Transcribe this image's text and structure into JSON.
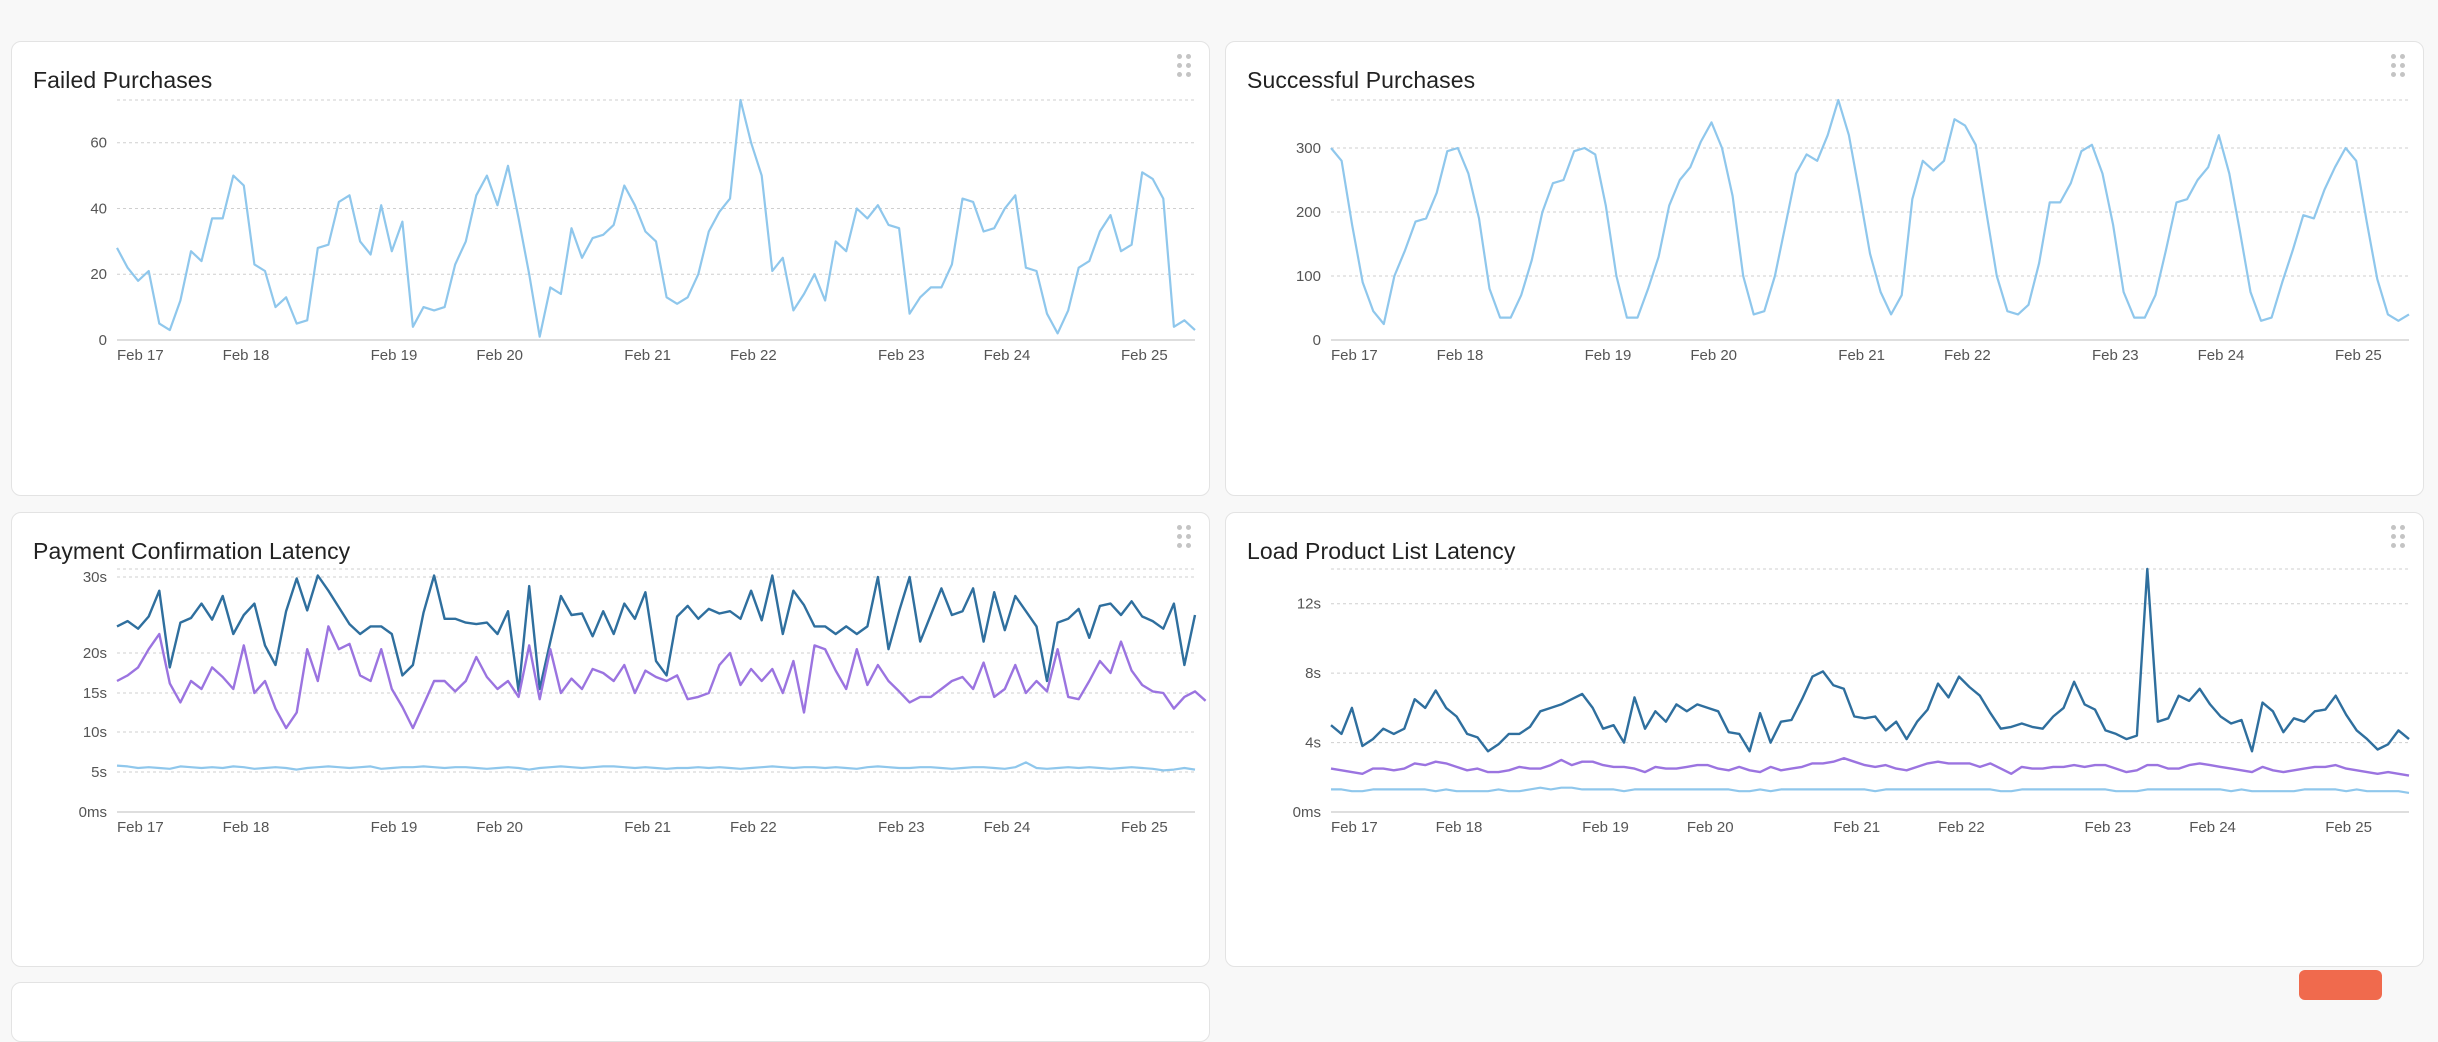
{
  "colors": {
    "series_light": "#8fc7ec",
    "series_dark": "#2f6f9e",
    "series_purple": "#9b74e0",
    "grid": "#cfcfcf",
    "fab": "#f06a4d"
  },
  "panels": {
    "failed": {
      "title": "Failed Purchases"
    },
    "successful": {
      "title": "Successful Purchases"
    },
    "payment": {
      "title": "Payment Confirmation Latency"
    },
    "load": {
      "title": "Load Product List Latency"
    }
  },
  "chart_data": [
    {
      "id": "failed",
      "type": "line",
      "title": "Failed Purchases",
      "x_tick_labels": [
        "Feb 17",
        "Feb 18",
        "Feb 19",
        "Feb 20",
        "Feb 21",
        "Feb 22",
        "Feb 23",
        "Feb 24",
        "Feb 25"
      ],
      "x_tick_index": [
        0,
        10,
        24,
        34,
        48,
        58,
        72,
        82,
        95
      ],
      "y_ticks": [
        0,
        20,
        40,
        60
      ],
      "y_tick_labels": [
        "0",
        "20",
        "40",
        "60"
      ],
      "ylim": [
        0,
        73
      ],
      "grid": true,
      "series": [
        {
          "color": "light",
          "values": [
            28,
            22,
            18,
            21,
            5,
            3,
            12,
            27,
            24,
            37,
            37,
            50,
            47,
            23,
            21,
            10,
            13,
            5,
            6,
            28,
            29,
            42,
            44,
            30,
            26,
            41,
            27,
            36,
            4,
            10,
            9,
            10,
            23,
            30,
            44,
            50,
            41,
            53,
            37,
            20,
            1,
            16,
            14,
            34,
            25,
            31,
            32,
            35,
            47,
            41,
            33,
            30,
            13,
            11,
            13,
            20,
            33,
            39,
            43,
            73,
            60,
            50,
            21,
            25,
            9,
            14,
            20,
            12,
            30,
            27,
            40,
            37,
            41,
            35,
            34,
            8,
            13,
            16,
            16,
            23,
            43,
            42,
            33,
            34,
            40,
            44,
            22,
            21,
            8,
            2,
            9,
            22,
            24,
            33,
            38,
            27,
            29,
            51,
            49,
            43,
            4,
            6,
            3
          ]
        }
      ]
    },
    {
      "id": "successful",
      "type": "line",
      "title": "Successful Purchases",
      "x_tick_labels": [
        "Feb 17",
        "Feb 18",
        "Feb 19",
        "Feb 20",
        "Feb 21",
        "Feb 22",
        "Feb 23",
        "Feb 24",
        "Feb 25"
      ],
      "x_tick_index": [
        0,
        10,
        24,
        34,
        48,
        58,
        72,
        82,
        95
      ],
      "y_ticks": [
        0,
        100,
        200,
        300
      ],
      "y_tick_labels": [
        "0",
        "100",
        "200",
        "300"
      ],
      "ylim": [
        0,
        375
      ],
      "grid": true,
      "series": [
        {
          "color": "light",
          "values": [
            300,
            280,
            180,
            90,
            45,
            25,
            100,
            140,
            185,
            190,
            230,
            295,
            300,
            260,
            190,
            80,
            35,
            35,
            70,
            125,
            200,
            245,
            250,
            295,
            300,
            290,
            210,
            100,
            35,
            35,
            80,
            130,
            210,
            250,
            270,
            310,
            340,
            300,
            225,
            100,
            40,
            45,
            100,
            180,
            260,
            290,
            280,
            320,
            375,
            320,
            230,
            135,
            75,
            40,
            70,
            220,
            280,
            265,
            280,
            345,
            335,
            305,
            200,
            100,
            45,
            40,
            55,
            120,
            215,
            215,
            245,
            295,
            305,
            260,
            180,
            75,
            35,
            35,
            70,
            140,
            215,
            220,
            250,
            270,
            320,
            260,
            170,
            75,
            30,
            35,
            90,
            140,
            195,
            190,
            235,
            270,
            300,
            280,
            185,
            95,
            40,
            30,
            40
          ]
        }
      ]
    },
    {
      "id": "payment",
      "type": "line",
      "title": "Payment Confirmation Latency",
      "x_tick_labels": [
        "Feb 17",
        "Feb 18",
        "Feb 19",
        "Feb 20",
        "Feb 21",
        "Feb 22",
        "Feb 23",
        "Feb 24",
        "Feb 25"
      ],
      "x_tick_index": [
        0,
        10,
        24,
        34,
        48,
        58,
        72,
        82,
        95
      ],
      "y_ticks": [
        0,
        5,
        10,
        15,
        20,
        30
      ],
      "y_tick_labels": [
        "0ms",
        "5s",
        "10s",
        "15s",
        "20s",
        "30s"
      ],
      "y_scale_note": "non-linear axis",
      "ylim": [
        0,
        30
      ],
      "grid": true,
      "series": [
        {
          "color": "dark",
          "values": [
            23.5,
            24.2,
            23.2,
            24.8,
            28.2,
            18.2,
            24,
            24.6,
            26.5,
            24.4,
            27.5,
            22.5,
            25,
            26.5,
            21,
            18.5,
            25.5,
            29.8,
            25.6,
            30.2,
            28.2,
            26,
            23.8,
            22.5,
            23.5,
            23.5,
            22.5,
            17.2,
            18.5,
            25.3,
            30.2,
            24.5,
            24.5,
            24,
            23.8,
            24,
            22.5,
            25.5,
            15.2,
            28.8,
            15.5,
            21.5,
            27.5,
            25,
            25.2,
            22.2,
            25.5,
            22.5,
            26.5,
            24.5,
            28,
            19,
            17.2,
            24.8,
            26.2,
            24.5,
            25.8,
            25.2,
            25.5,
            24.5,
            28.2,
            24.3,
            30.2,
            22.5,
            28.2,
            26.3,
            23.5,
            23.5,
            22.5,
            23.5,
            22.5,
            23.5,
            30,
            20.5,
            25.5,
            30,
            21.5,
            25,
            28.5,
            25,
            25.5,
            28.5,
            21.5,
            28,
            23,
            27.5,
            25.5,
            23.5,
            16.5,
            24,
            24.5,
            25.8,
            22,
            26.2,
            26.5,
            25,
            26.8,
            24.8,
            24.2,
            23.2,
            26.5,
            18.5,
            25
          ]
        },
        {
          "color": "purple",
          "values": [
            16.5,
            17.2,
            18.2,
            20.5,
            22.5,
            16.2,
            13.8,
            16.5,
            15.5,
            18.2,
            17,
            15.5,
            21,
            15,
            16.5,
            13,
            10.5,
            12.5,
            20.5,
            16.5,
            23.5,
            20.5,
            21.2,
            17.2,
            16.5,
            20.5,
            15.5,
            13.2,
            10.5,
            13.5,
            16.5,
            16.5,
            15.2,
            16.5,
            19.5,
            17,
            15.5,
            16.5,
            14.5,
            21,
            14.2,
            20.5,
            15,
            16.8,
            15.5,
            18,
            17.5,
            16.5,
            18.5,
            15,
            17.8,
            17,
            16.5,
            17.2,
            14.2,
            14.5,
            15,
            18.5,
            20,
            16,
            18,
            16.5,
            18,
            15,
            19,
            12.5,
            21,
            20.5,
            17.8,
            15.5,
            20.5,
            16,
            18.5,
            16.5,
            15.2,
            13.8,
            14.5,
            14.5,
            15.5,
            16.5,
            17,
            15.5,
            18.8,
            14.5,
            15.5,
            18.5,
            15,
            16.5,
            15.2,
            20.5,
            14.5,
            14.2,
            16.5,
            19,
            17.5,
            21.5,
            17.8,
            16,
            15.2,
            15,
            13,
            14.5,
            15.2,
            14
          ]
        },
        {
          "color": "light",
          "values": [
            5.8,
            5.7,
            5.5,
            5.6,
            5.5,
            5.4,
            5.7,
            5.6,
            5.5,
            5.6,
            5.5,
            5.7,
            5.6,
            5.4,
            5.5,
            5.6,
            5.5,
            5.3,
            5.5,
            5.6,
            5.7,
            5.6,
            5.5,
            5.6,
            5.7,
            5.4,
            5.5,
            5.6,
            5.6,
            5.7,
            5.6,
            5.5,
            5.6,
            5.6,
            5.5,
            5.4,
            5.5,
            5.6,
            5.5,
            5.3,
            5.5,
            5.6,
            5.7,
            5.6,
            5.5,
            5.6,
            5.7,
            5.7,
            5.6,
            5.5,
            5.6,
            5.5,
            5.4,
            5.5,
            5.5,
            5.6,
            5.5,
            5.6,
            5.5,
            5.4,
            5.5,
            5.6,
            5.7,
            5.6,
            5.5,
            5.6,
            5.6,
            5.5,
            5.6,
            5.5,
            5.4,
            5.6,
            5.7,
            5.6,
            5.5,
            5.5,
            5.6,
            5.6,
            5.5,
            5.4,
            5.5,
            5.6,
            5.6,
            5.5,
            5.4,
            5.6,
            6.2,
            5.5,
            5.4,
            5.5,
            5.6,
            5.5,
            5.6,
            5.5,
            5.4,
            5.5,
            5.6,
            5.5,
            5.4,
            5.2,
            5.3,
            5.5,
            5.3
          ]
        }
      ]
    },
    {
      "id": "load",
      "type": "line",
      "title": "Load Product List Latency",
      "x_tick_labels": [
        "Feb 17",
        "Feb 18",
        "Feb 19",
        "Feb 20",
        "Feb 21",
        "Feb 22",
        "Feb 23",
        "Feb 24",
        "Feb 25"
      ],
      "x_tick_index": [
        0,
        10,
        24,
        34,
        48,
        58,
        72,
        82,
        95
      ],
      "y_ticks": [
        0,
        4,
        8,
        12
      ],
      "y_tick_labels": [
        "0ms",
        "4s",
        "8s",
        "12s"
      ],
      "ylim": [
        0,
        14
      ],
      "grid": true,
      "series": [
        {
          "color": "dark",
          "values": [
            5,
            4.5,
            6,
            3.8,
            4.2,
            4.8,
            4.5,
            4.8,
            6.5,
            6,
            7,
            6,
            5.5,
            4.5,
            4.3,
            3.5,
            3.9,
            4.5,
            4.5,
            4.9,
            5.8,
            6,
            6.2,
            6.5,
            6.8,
            6,
            4.8,
            5,
            4,
            6.6,
            4.8,
            5.8,
            5.2,
            6.2,
            5.8,
            6.2,
            6,
            5.8,
            4.6,
            4.5,
            3.5,
            5.7,
            4,
            5.2,
            5.3,
            6.5,
            7.8,
            8.1,
            7.3,
            7.1,
            5.5,
            5.4,
            5.5,
            4.7,
            5.2,
            4.2,
            5.2,
            5.9,
            7.4,
            6.6,
            7.8,
            7.2,
            6.7,
            5.7,
            4.8,
            4.9,
            5.1,
            4.9,
            4.8,
            5.5,
            6,
            7.5,
            6.2,
            5.9,
            4.7,
            4.5,
            4.2,
            4.4,
            14,
            5.2,
            5.4,
            6.7,
            6.4,
            7.1,
            6.2,
            5.5,
            5.1,
            5.3,
            3.5,
            6.3,
            5.8,
            4.6,
            5.4,
            5.2,
            5.8,
            5.9,
            6.7,
            5.6,
            4.7,
            4.2,
            3.6,
            3.9,
            4.7,
            4.2
          ]
        },
        {
          "color": "purple",
          "values": [
            2.5,
            2.4,
            2.3,
            2.2,
            2.5,
            2.5,
            2.4,
            2.5,
            2.8,
            2.7,
            2.9,
            2.8,
            2.6,
            2.4,
            2.5,
            2.3,
            2.3,
            2.4,
            2.6,
            2.5,
            2.5,
            2.7,
            3,
            2.7,
            2.9,
            2.9,
            2.7,
            2.6,
            2.6,
            2.5,
            2.3,
            2.6,
            2.5,
            2.5,
            2.6,
            2.7,
            2.7,
            2.5,
            2.4,
            2.6,
            2.4,
            2.3,
            2.6,
            2.4,
            2.5,
            2.6,
            2.8,
            2.8,
            2.9,
            3.1,
            2.9,
            2.7,
            2.6,
            2.7,
            2.5,
            2.4,
            2.6,
            2.8,
            2.9,
            2.8,
            2.8,
            2.8,
            2.6,
            2.8,
            2.5,
            2.2,
            2.6,
            2.5,
            2.5,
            2.6,
            2.6,
            2.7,
            2.6,
            2.7,
            2.7,
            2.5,
            2.3,
            2.4,
            2.7,
            2.7,
            2.5,
            2.5,
            2.7,
            2.8,
            2.7,
            2.6,
            2.5,
            2.4,
            2.3,
            2.6,
            2.4,
            2.3,
            2.4,
            2.5,
            2.6,
            2.6,
            2.7,
            2.5,
            2.4,
            2.3,
            2.2,
            2.3,
            2.2,
            2.1
          ]
        },
        {
          "color": "light",
          "values": [
            1.3,
            1.3,
            1.2,
            1.2,
            1.3,
            1.3,
            1.3,
            1.3,
            1.3,
            1.3,
            1.2,
            1.3,
            1.2,
            1.2,
            1.2,
            1.2,
            1.3,
            1.2,
            1.2,
            1.3,
            1.4,
            1.3,
            1.4,
            1.4,
            1.3,
            1.3,
            1.3,
            1.3,
            1.2,
            1.3,
            1.3,
            1.3,
            1.3,
            1.3,
            1.3,
            1.3,
            1.3,
            1.3,
            1.3,
            1.2,
            1.2,
            1.3,
            1.2,
            1.3,
            1.3,
            1.3,
            1.3,
            1.3,
            1.3,
            1.3,
            1.3,
            1.3,
            1.2,
            1.3,
            1.3,
            1.3,
            1.3,
            1.3,
            1.3,
            1.3,
            1.3,
            1.3,
            1.3,
            1.3,
            1.2,
            1.2,
            1.3,
            1.3,
            1.3,
            1.3,
            1.3,
            1.3,
            1.3,
            1.3,
            1.3,
            1.2,
            1.2,
            1.2,
            1.3,
            1.3,
            1.3,
            1.3,
            1.3,
            1.3,
            1.3,
            1.3,
            1.2,
            1.3,
            1.2,
            1.2,
            1.2,
            1.2,
            1.2,
            1.3,
            1.3,
            1.3,
            1.3,
            1.2,
            1.3,
            1.2,
            1.2,
            1.2,
            1.2,
            1.1
          ]
        }
      ]
    }
  ]
}
